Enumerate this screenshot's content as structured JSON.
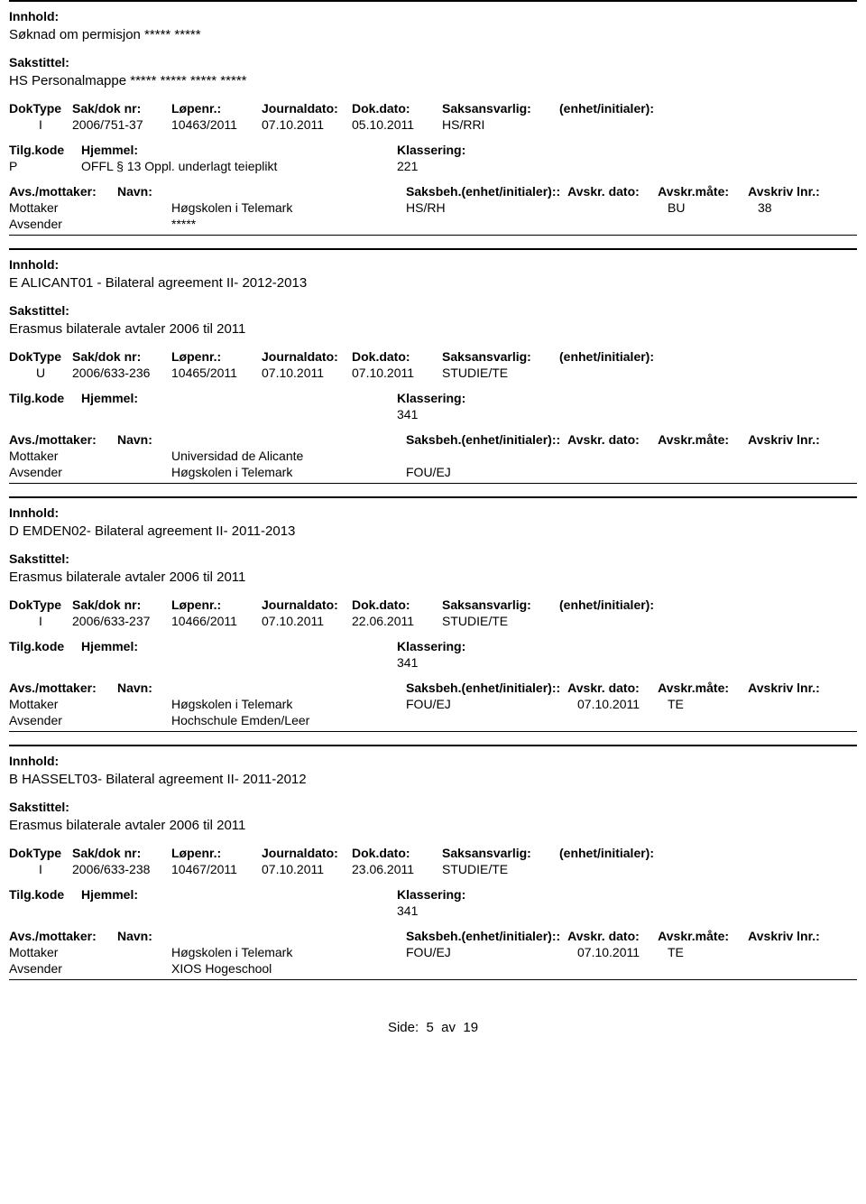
{
  "labels": {
    "innhold": "Innhold:",
    "sakstittel": "Sakstittel:",
    "doktype": "DokType",
    "sakdok": "Sak/dok nr:",
    "lopenr": "Løpenr.:",
    "jdato": "Journaldato:",
    "dokdato": "Dok.dato:",
    "saksansvarlig": "Saksansvarlig:",
    "enhet": "(enhet/initialer):",
    "tilgkode": "Tilg.kode",
    "hjemmel": "Hjemmel:",
    "klassering": "Klassering:",
    "avsmottaker": "Avs./mottaker:",
    "navn": "Navn:",
    "saksbeh": "Saksbeh.",
    "saksbehenhet": "(enhet/initialer):",
    "avskrdato": "Avskr. dato:",
    "avskrmate": "Avskr.måte:",
    "avskrivlnr": "Avskriv lnr.:",
    "mottaker": "Mottaker",
    "avsender": "Avsender"
  },
  "footer": {
    "side_label": "Side:",
    "page": "5",
    "av": "av",
    "total": "19"
  },
  "records": [
    {
      "innhold": "Søknad om permisjon ***** *****",
      "sakstittel": "HS Personalmappe ***** ***** ***** *****",
      "doktype": "I",
      "sakdok": "2006/751-37",
      "lopenr": "10463/2011",
      "jdato": "07.10.2011",
      "dokdato": "05.10.2011",
      "saksansvarlig": "HS/RRI",
      "tilgkode": "P",
      "hjemmel": "OFFL § 13 Oppl. underlagt teieplikt",
      "klassering": "221",
      "parties": [
        {
          "role": "Mottaker",
          "navn": "Høgskolen i Telemark",
          "saksbeh": "HS/RH",
          "avskrdato": "",
          "avskrmate": "BU",
          "avskrlnr": "38"
        },
        {
          "role": "Avsender",
          "navn": "*****",
          "saksbeh": "",
          "avskrdato": "",
          "avskrmate": "",
          "avskrlnr": ""
        }
      ]
    },
    {
      "innhold": "E ALICANT01 - Bilateral agreement II- 2012-2013",
      "sakstittel": "Erasmus bilaterale avtaler  2006 til 2011",
      "doktype": "U",
      "sakdok": "2006/633-236",
      "lopenr": "10465/2011",
      "jdato": "07.10.2011",
      "dokdato": "07.10.2011",
      "saksansvarlig": "STUDIE/TE",
      "tilgkode": "",
      "hjemmel": "",
      "klassering": "341",
      "parties": [
        {
          "role": "Mottaker",
          "navn": "Universidad de Alicante",
          "saksbeh": "",
          "avskrdato": "",
          "avskrmate": "",
          "avskrlnr": ""
        },
        {
          "role": "Avsender",
          "navn": "Høgskolen i Telemark",
          "saksbeh": "FOU/EJ",
          "avskrdato": "",
          "avskrmate": "",
          "avskrlnr": ""
        }
      ]
    },
    {
      "innhold": "D EMDEN02- Bilateral agreement II- 2011-2013",
      "sakstittel": "Erasmus bilaterale avtaler  2006 til 2011",
      "doktype": "I",
      "sakdok": "2006/633-237",
      "lopenr": "10466/2011",
      "jdato": "07.10.2011",
      "dokdato": "22.06.2011",
      "saksansvarlig": "STUDIE/TE",
      "tilgkode": "",
      "hjemmel": "",
      "klassering": "341",
      "parties": [
        {
          "role": "Mottaker",
          "navn": "Høgskolen i Telemark",
          "saksbeh": "FOU/EJ",
          "avskrdato": "07.10.2011",
          "avskrmate": "TE",
          "avskrlnr": ""
        },
        {
          "role": "Avsender",
          "navn": "Hochschule Emden/Leer",
          "saksbeh": "",
          "avskrdato": "",
          "avskrmate": "",
          "avskrlnr": ""
        }
      ]
    },
    {
      "innhold": "B HASSELT03- Bilateral agreement II- 2011-2012",
      "sakstittel": "Erasmus bilaterale avtaler  2006 til 2011",
      "doktype": "I",
      "sakdok": "2006/633-238",
      "lopenr": "10467/2011",
      "jdato": "07.10.2011",
      "dokdato": "23.06.2011",
      "saksansvarlig": "STUDIE/TE",
      "tilgkode": "",
      "hjemmel": "",
      "klassering": "341",
      "parties": [
        {
          "role": "Mottaker",
          "navn": "Høgskolen i Telemark",
          "saksbeh": "FOU/EJ",
          "avskrdato": "07.10.2011",
          "avskrmate": "TE",
          "avskrlnr": ""
        },
        {
          "role": "Avsender",
          "navn": "XIOS Hogeschool",
          "saksbeh": "",
          "avskrdato": "",
          "avskrmate": "",
          "avskrlnr": ""
        }
      ]
    }
  ]
}
